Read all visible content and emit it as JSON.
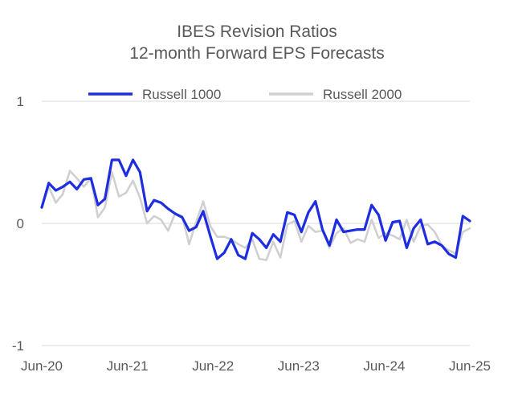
{
  "chart_data": {
    "type": "line",
    "title": [
      "IBES Revision Ratios",
      "12-month Forward EPS Forecasts"
    ],
    "xlabel": "",
    "ylabel": "",
    "x_start": "2020-06",
    "x_end": "2025-06",
    "x_ticks": [
      {
        "label": "Jun-20",
        "month": "2020-06"
      },
      {
        "label": "Jun-21",
        "month": "2021-06"
      },
      {
        "label": "Jun-22",
        "month": "2022-06"
      },
      {
        "label": "Jun-23",
        "month": "2023-06"
      },
      {
        "label": "Jun-24",
        "month": "2024-06"
      },
      {
        "label": "Jun-25",
        "month": "2025-06"
      }
    ],
    "ylim": [
      -1,
      1
    ],
    "y_ticks": [
      {
        "label": "1",
        "value": 1
      },
      {
        "label": "0",
        "value": 0
      },
      {
        "label": "-1",
        "value": -1
      }
    ],
    "grid": "horizontal",
    "legend_position": "top",
    "series": [
      {
        "name": "Russell 1000",
        "color": "#1f2de0",
        "values": [
          0.13,
          0.33,
          0.27,
          0.3,
          0.34,
          0.28,
          0.36,
          0.37,
          0.15,
          0.2,
          0.52,
          0.52,
          0.39,
          0.52,
          0.42,
          0.1,
          0.19,
          0.17,
          0.12,
          0.08,
          0.05,
          -0.06,
          -0.03,
          0.1,
          -0.1,
          -0.29,
          -0.24,
          -0.13,
          -0.26,
          -0.29,
          -0.08,
          -0.13,
          -0.2,
          -0.09,
          -0.15,
          0.09,
          0.07,
          -0.07,
          0.09,
          0.18,
          -0.05,
          -0.18,
          0.03,
          -0.07,
          -0.06,
          -0.05,
          -0.05,
          0.15,
          0.07,
          -0.14,
          0.01,
          0.02,
          -0.2,
          -0.04,
          0.03,
          -0.17,
          -0.15,
          -0.18,
          -0.25,
          -0.28,
          0.06,
          0.02
        ]
      },
      {
        "name": "Russell 2000",
        "color": "#d0d0d0",
        "values": [
          0.14,
          0.3,
          0.17,
          0.24,
          0.43,
          0.37,
          0.3,
          0.37,
          0.05,
          0.13,
          0.42,
          0.22,
          0.25,
          0.35,
          0.21,
          0.0,
          0.06,
          0.03,
          -0.06,
          0.08,
          0.06,
          -0.17,
          0.01,
          0.18,
          -0.02,
          -0.11,
          -0.11,
          -0.13,
          -0.17,
          -0.2,
          -0.13,
          -0.29,
          -0.3,
          -0.15,
          -0.28,
          -0.01,
          0.02,
          -0.15,
          -0.02,
          -0.07,
          -0.06,
          -0.2,
          -0.08,
          -0.04,
          -0.16,
          -0.13,
          -0.15,
          0.03,
          -0.12,
          -0.08,
          -0.1,
          -0.13,
          0.03,
          -0.15,
          -0.02,
          -0.01,
          -0.07,
          -0.18,
          -0.22,
          -0.25,
          -0.07,
          -0.04
        ]
      }
    ]
  }
}
